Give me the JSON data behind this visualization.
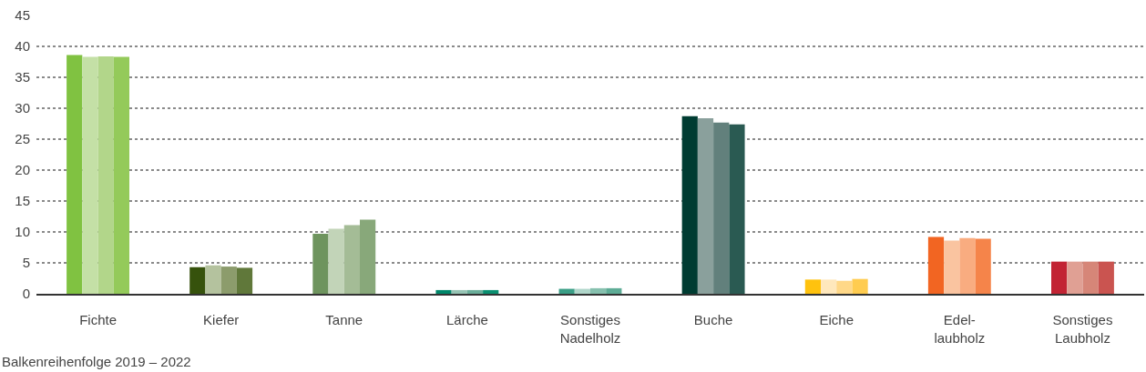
{
  "chart_data": {
    "type": "bar",
    "categories": [
      "Fichte",
      "Kiefer",
      "Tanne",
      "Lärche",
      "Sonstiges\nNadelholz",
      "Buche",
      "Eiche",
      "Edel-\nlaubholz",
      "Sonstiges\nLaubholz"
    ],
    "series": [
      {
        "colors": [
          "#80c241",
          "#36520c",
          "#6e945e",
          "#00876a",
          "#3a9e86",
          "#003c32",
          "#ffc20e",
          "#f26522",
          "#c22434"
        ],
        "values": [
          38.6,
          4.3,
          9.7,
          0.6,
          0.8,
          28.7,
          2.3,
          9.2,
          5.2
        ]
      },
      {
        "colors": [
          "#c4e0a6",
          "#b4c29e",
          "#c2d4b8",
          "#96c4b4",
          "#b0d6ca",
          "#8aa09c",
          "#ffe8bc",
          "#fac4a0",
          "#e0a094"
        ],
        "values": [
          38.3,
          4.6,
          10.5,
          0.6,
          0.8,
          28.4,
          2.3,
          8.6,
          5.2
        ]
      },
      {
        "colors": [
          "#b2d68a",
          "#8c9c6c",
          "#a4bc96",
          "#6aae9a",
          "#86c0ae",
          "#62807c",
          "#ffd888",
          "#f9ac80",
          "#d68678"
        ],
        "values": [
          38.4,
          4.4,
          11.1,
          0.6,
          0.9,
          27.7,
          2.1,
          9.0,
          5.2
        ]
      },
      {
        "colors": [
          "#94ca5a",
          "#60783a",
          "#88a87a",
          "#0a8f70",
          "#5eac96",
          "#2a5a52",
          "#ffcc50",
          "#f5844a",
          "#ca5450"
        ],
        "values": [
          38.3,
          4.2,
          12.0,
          0.6,
          0.9,
          27.4,
          2.4,
          8.9,
          5.2
        ]
      }
    ],
    "ylim": [
      0,
      45
    ],
    "yticks": [
      0,
      5,
      10,
      15,
      20,
      25,
      30,
      35,
      40,
      45
    ],
    "grid": "y",
    "annotations": [
      "Balkenreihenfolge 2019 – 2022"
    ]
  }
}
